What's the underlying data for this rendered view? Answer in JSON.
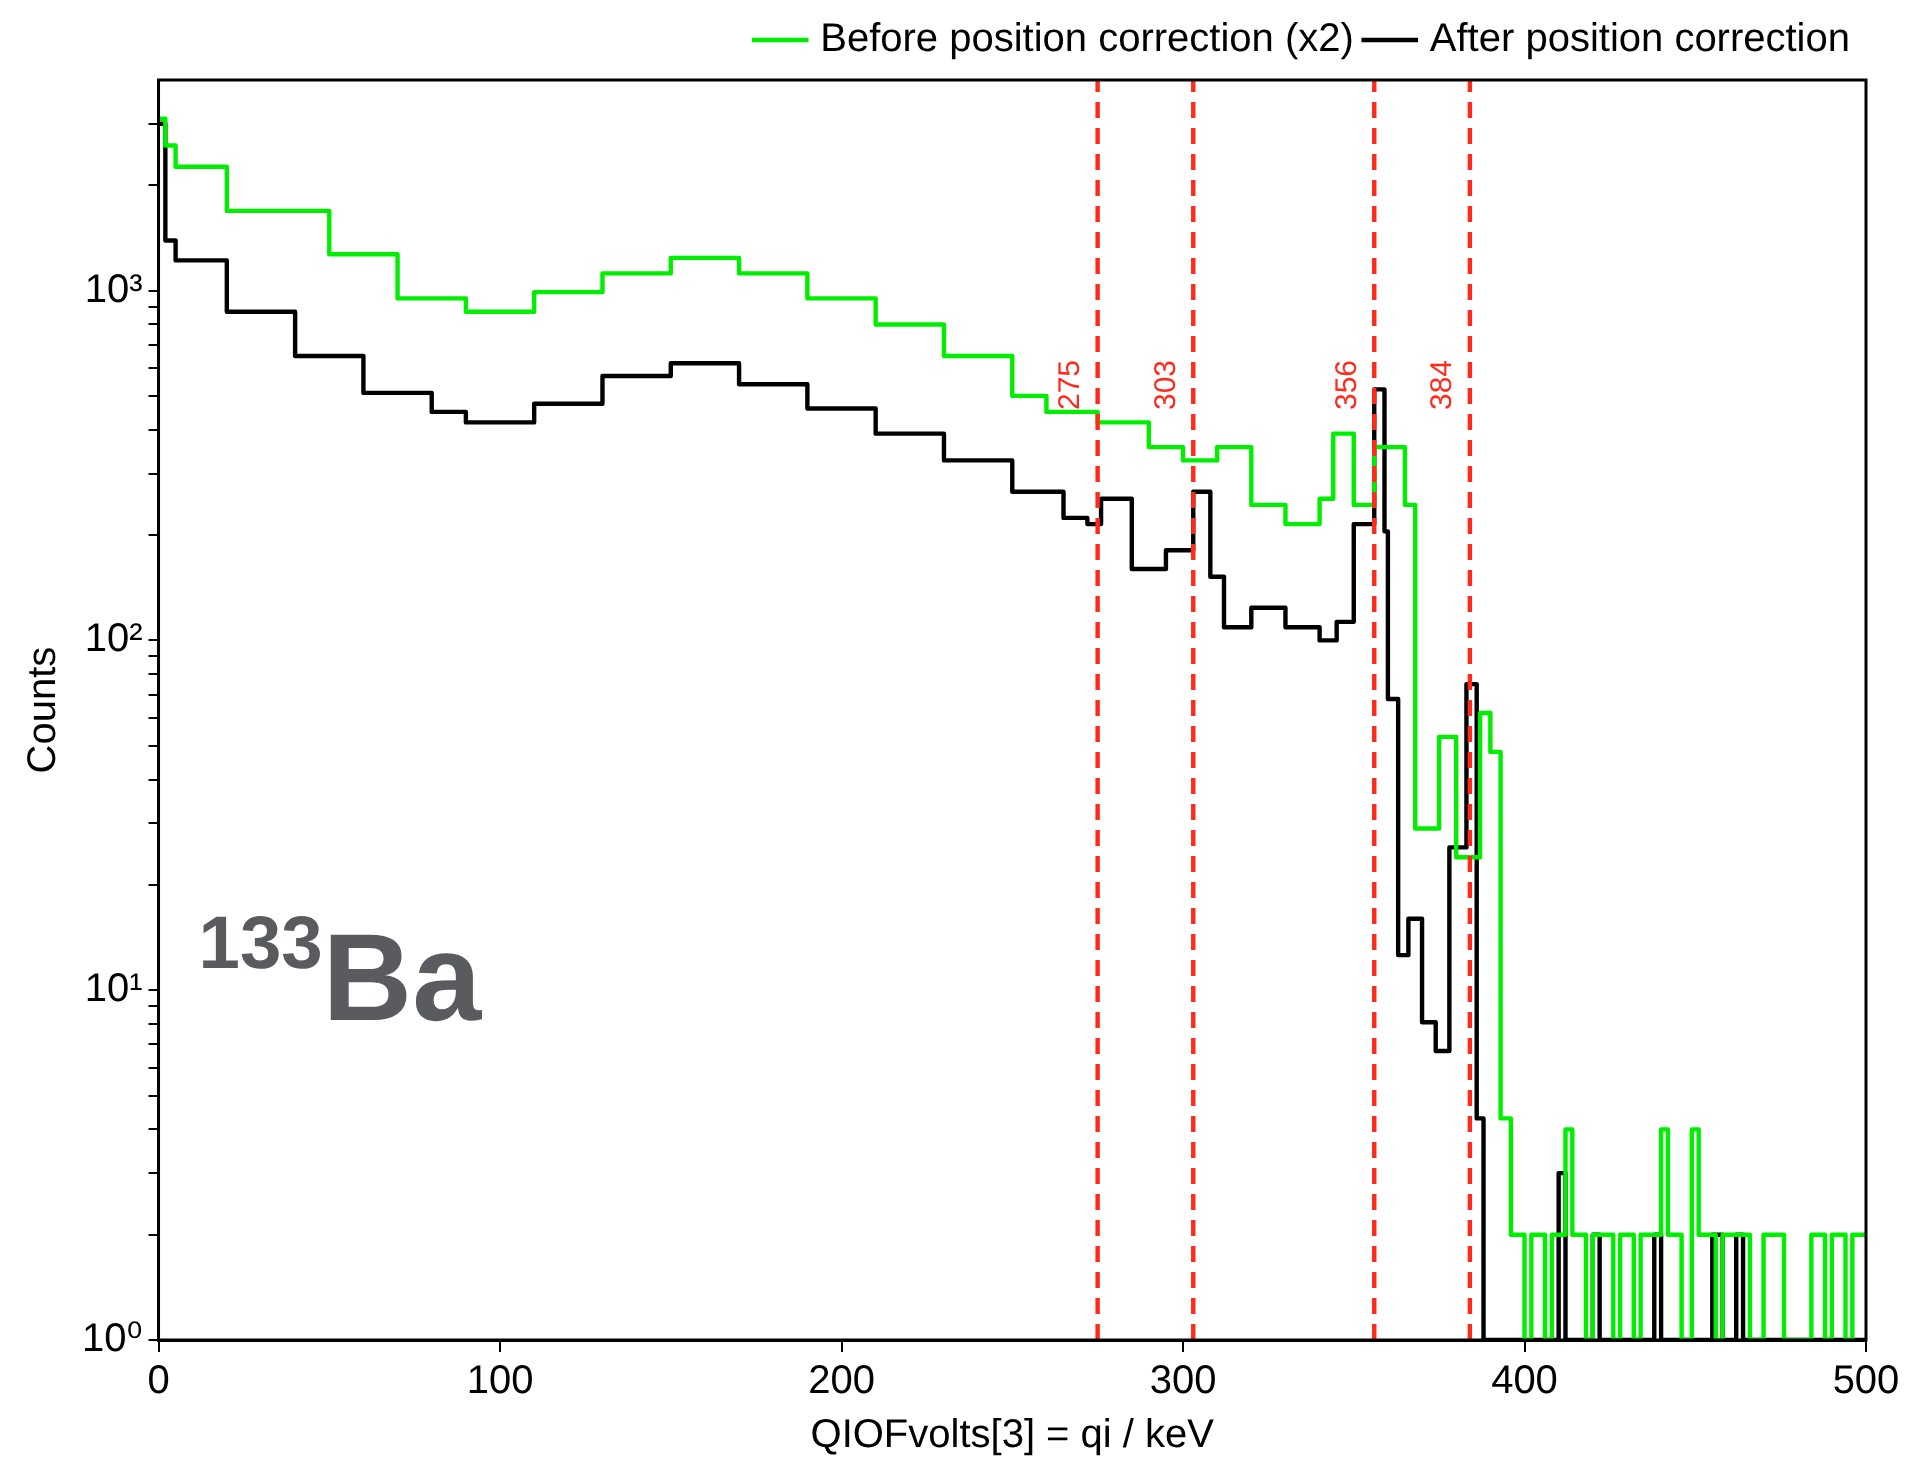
{
  "chart_data": {
    "type": "step",
    "xlabel": "QIOFvolts[3] = qi / keV",
    "ylabel": "Counts",
    "log": "y",
    "grid": false,
    "legend": "top right",
    "marker": "none",
    "line_style": "solid",
    "xlim": [
      0,
      500
    ],
    "xticks": [
      0,
      100,
      200,
      300,
      400,
      500
    ],
    "ylim": [
      1,
      4000
    ],
    "yticks": [
      {
        "value": 1,
        "label": "10⁰"
      },
      {
        "value": 2,
        "label": null
      },
      {
        "value": 3,
        "label": null
      },
      {
        "value": 4,
        "label": null
      },
      {
        "value": 5,
        "label": null
      },
      {
        "value": 6,
        "label": null
      },
      {
        "value": 7,
        "label": null
      },
      {
        "value": 8,
        "label": null
      },
      {
        "value": 9,
        "label": null
      },
      {
        "value": 10,
        "label": "10¹"
      },
      {
        "value": 20,
        "label": null
      },
      {
        "value": 30,
        "label": null
      },
      {
        "value": 40,
        "label": null
      },
      {
        "value": 50,
        "label": null
      },
      {
        "value": 60,
        "label": null
      },
      {
        "value": 70,
        "label": null
      },
      {
        "value": 80,
        "label": null
      },
      {
        "value": 90,
        "label": null
      },
      {
        "value": 100,
        "label": "10²"
      },
      {
        "value": 200,
        "label": null
      },
      {
        "value": 300,
        "label": null
      },
      {
        "value": 400,
        "label": null
      },
      {
        "value": 500,
        "label": null
      },
      {
        "value": 600,
        "label": null
      },
      {
        "value": 700,
        "label": null
      },
      {
        "value": 800,
        "label": null
      },
      {
        "value": 900,
        "label": null
      },
      {
        "value": 1000,
        "label": "10³"
      },
      {
        "value": 2000,
        "label": null
      },
      {
        "value": 3000,
        "label": null
      }
    ],
    "series": [
      {
        "name": "Before position correction (x2)",
        "color": "#00ee00",
        "x": [
          0,
          2,
          5,
          20,
          50,
          70,
          90,
          110,
          130,
          150,
          170,
          190,
          210,
          230,
          250,
          260,
          275,
          290,
          300,
          310,
          320,
          330,
          340,
          344,
          350,
          356,
          362,
          365,
          368,
          375,
          380,
          387,
          390,
          393,
          396,
          400,
          402,
          406,
          408,
          412,
          414,
          418,
          420,
          426,
          428,
          432,
          434,
          440,
          442,
          446,
          449,
          451,
          456,
          458,
          466,
          470,
          476,
          484,
          488,
          490,
          494,
          496,
          500
        ],
        "values": [
          3100,
          2600,
          2260,
          1690,
          1270,
          950,
          870,
          990,
          1120,
          1240,
          1120,
          950,
          800,
          650,
          500,
          450,
          420,
          357,
          327,
          357,
          244,
          215,
          254,
          390,
          244,
          357,
          357,
          244,
          29,
          53,
          24,
          62,
          48,
          4.3,
          2,
          1,
          2,
          1,
          2,
          4,
          2,
          1,
          2,
          1,
          2,
          1,
          2,
          4,
          2,
          1,
          4,
          2,
          1,
          2,
          1,
          2,
          1,
          2,
          1,
          2,
          1,
          2,
          2
        ]
      },
      {
        "name": "After position correction",
        "color": "#000000",
        "x": [
          0,
          2,
          5,
          20,
          40,
          60,
          80,
          90,
          110,
          130,
          150,
          170,
          190,
          210,
          230,
          250,
          265,
          272,
          276,
          285,
          295,
          303,
          308,
          312,
          320,
          330,
          340,
          345,
          350,
          356,
          359,
          360,
          363,
          366,
          370,
          374,
          378,
          383,
          386,
          388,
          410,
          412,
          420,
          422,
          438,
          440,
          455,
          458,
          462,
          464,
          500
        ],
        "values": [
          3000,
          1390,
          1220,
          870,
          650,
          510,
          450,
          420,
          475,
          570,
          620,
          540,
          460,
          390,
          327,
          266,
          224,
          215,
          254,
          160,
          181,
          266,
          152,
          109,
          124,
          109,
          100,
          113,
          215,
          522,
          205,
          68,
          12.6,
          16,
          8.1,
          6.7,
          25.6,
          75,
          4.3,
          1,
          3,
          1,
          2,
          1,
          2,
          1,
          2,
          1,
          2,
          1,
          1
        ]
      }
    ],
    "ref_lines": [
      {
        "axis": "x",
        "value": 275,
        "label": "275",
        "color": "#ff2a1a",
        "line_style": "dashed"
      },
      {
        "axis": "x",
        "value": 303,
        "label": "303",
        "color": "#ff2a1a",
        "line_style": "dashed"
      },
      {
        "axis": "x",
        "value": 356,
        "label": "356",
        "color": "#ff2a1a",
        "line_style": "dashed"
      },
      {
        "axis": "x",
        "value": 384,
        "label": "384",
        "color": "#ff2a1a",
        "line_style": "dashed"
      }
    ],
    "annotations": [
      "$^{133}$Ba"
    ]
  }
}
